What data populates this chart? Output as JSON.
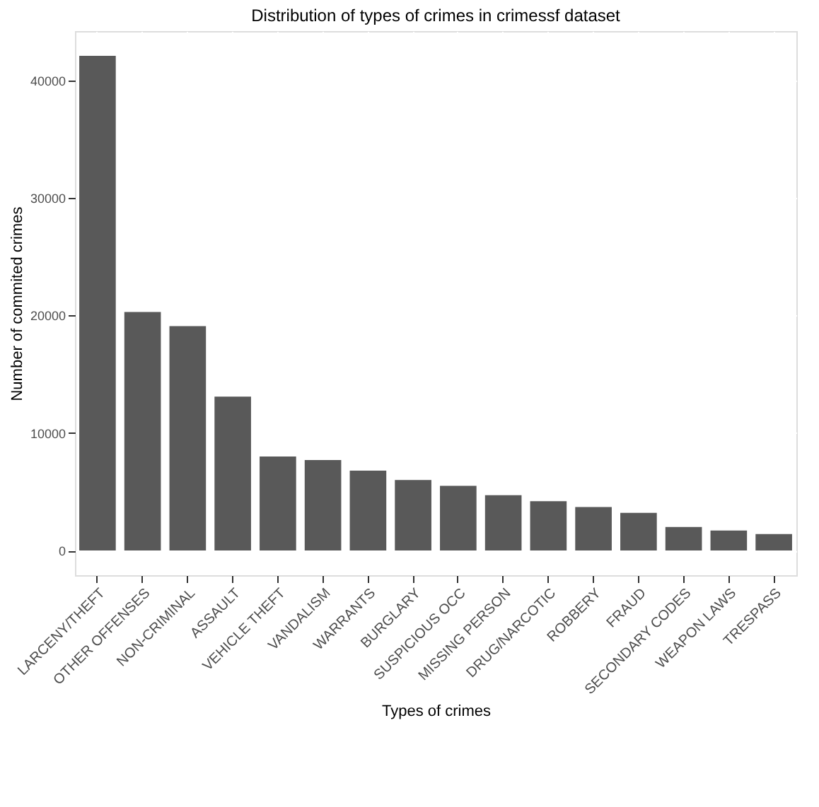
{
  "chart_data": {
    "type": "bar",
    "title": "Distribution of types of crimes in crimessf dataset",
    "xlabel": "Types of crimes",
    "ylabel": "Number of commited crimes",
    "categories": [
      "LARCENY/THEFT",
      "OTHER OFFENSES",
      "NON-CRIMINAL",
      "ASSAULT",
      "VEHICLE THEFT",
      "VANDALISM",
      "WARRANTS",
      "BURGLARY",
      "SUSPICIOUS OCC",
      "MISSING PERSON",
      "DRUG/NARCOTIC",
      "ROBBERY",
      "FRAUD",
      "SECONDARY CODES",
      "WEAPON LAWS",
      "TRESPASS"
    ],
    "values": [
      42100,
      20300,
      19100,
      13100,
      8000,
      7700,
      6800,
      6000,
      5500,
      4700,
      4200,
      3700,
      3200,
      2000,
      1700,
      1400
    ],
    "color": "#595959",
    "ylim": [
      -2105,
      44205
    ],
    "yticks": [
      0,
      10000,
      20000,
      30000,
      40000
    ],
    "grid": true
  }
}
